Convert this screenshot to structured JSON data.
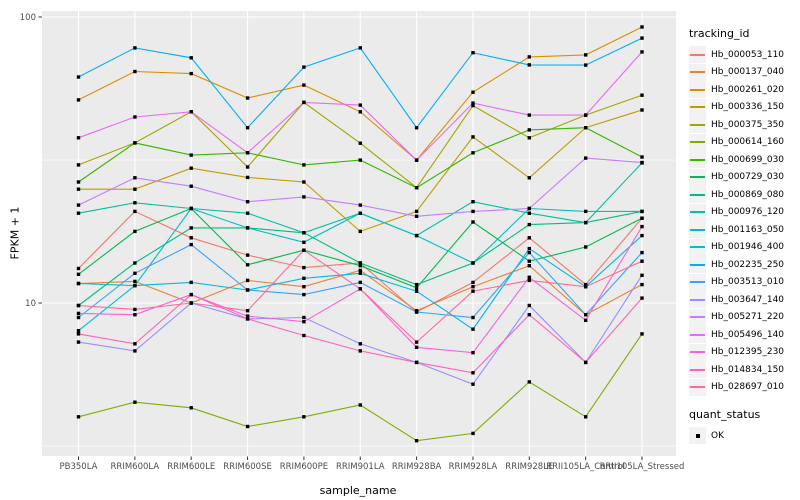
{
  "figure": {
    "background": "#FFFFFF",
    "panel_background": "#EBEBEB",
    "grid_color": "#FFFFFF",
    "tick_mark_color": "#333333",
    "axis_text_color": "#4D4D4D",
    "legend_key_background": "#F2F2F2"
  },
  "legend": {
    "color_title": "tracking_id",
    "shape_title": "quant_status",
    "shape_items": [
      "OK"
    ]
  },
  "chart_data": {
    "type": "line",
    "title": "",
    "xlabel": "sample_name",
    "ylabel": "FPKM + 1",
    "y_scale": "log10",
    "ylim": [
      2.9,
      105
    ],
    "grid": true,
    "legend_position": "right",
    "point_shape": "square",
    "point_color": "#000000",
    "y_major_ticks": [
      {
        "label": "100",
        "value": 100
      },
      {
        "label": "10",
        "value": 10
      }
    ],
    "y_minor_ticks": [
      31.6,
      3.16
    ],
    "categories": [
      "PB350LA",
      "RRIM600LA",
      "RRIM600LE",
      "RRIM600SE",
      "RRIM600PE",
      "RRIM901LA",
      "RRIM928BA",
      "RRIM928LA",
      "RRIM928LE",
      "RRII105LA_Control",
      "RRII105LA_Stressed"
    ],
    "series": [
      {
        "name": "Hb_000053_110",
        "color": "#F8766D",
        "values": [
          13.2,
          20.9,
          16.9,
          14.7,
          13.3,
          13.8,
          9.3,
          11.8,
          16.9,
          11.6,
          19.8
        ]
      },
      {
        "name": "Hb_000137_040",
        "color": "#EA8331",
        "values": [
          11.7,
          11.9,
          10.0,
          12.0,
          11.4,
          13.0,
          9.4,
          11.4,
          13.5,
          9.1,
          11.6
        ]
      },
      {
        "name": "Hb_000261_020",
        "color": "#D89000",
        "values": [
          51.3,
          64.5,
          63.4,
          52.1,
          57.8,
          46.6,
          31.6,
          54.6,
          72.5,
          73.7,
          92.3
        ]
      },
      {
        "name": "Hb_000336_150",
        "color": "#C09B00",
        "values": [
          25.0,
          25.0,
          29.6,
          27.5,
          26.5,
          17.8,
          20.9,
          38.1,
          27.4,
          41.0,
          47.3
        ]
      },
      {
        "name": "Hb_000375_350",
        "color": "#A3A500",
        "values": [
          30.4,
          36.3,
          46.6,
          29.9,
          50.3,
          36.2,
          25.3,
          49.0,
          37.8,
          45.4,
          53.3
        ]
      },
      {
        "name": "Hb_000614_160",
        "color": "#7CAE00",
        "values": [
          4.0,
          4.5,
          4.3,
          3.7,
          4.0,
          4.4,
          3.3,
          3.5,
          5.3,
          4.0,
          7.8
        ]
      },
      {
        "name": "Hb_000699_030",
        "color": "#39B600",
        "values": [
          26.5,
          36.3,
          32.9,
          33.5,
          30.4,
          31.6,
          25.3,
          33.5,
          40.3,
          41.0,
          32.4
        ]
      },
      {
        "name": "Hb_000729_030",
        "color": "#00BB4E",
        "values": [
          12.6,
          17.8,
          21.4,
          13.6,
          15.3,
          13.5,
          11.3,
          19.2,
          14.0,
          15.7,
          19.8
        ]
      },
      {
        "name": "Hb_000869_080",
        "color": "#00BF7D",
        "values": [
          9.8,
          13.8,
          18.3,
          18.3,
          17.6,
          13.8,
          11.6,
          13.8,
          18.8,
          19.1,
          20.9
        ]
      },
      {
        "name": "Hb_000976_120",
        "color": "#00C1A3",
        "values": [
          20.6,
          22.4,
          21.4,
          20.6,
          17.6,
          20.6,
          17.2,
          22.6,
          20.6,
          19.1,
          30.9
        ]
      },
      {
        "name": "Hb_001163_050",
        "color": "#00BFC4",
        "values": [
          11.7,
          11.5,
          21.4,
          18.3,
          16.3,
          20.6,
          17.2,
          13.8,
          21.4,
          20.9,
          20.9
        ]
      },
      {
        "name": "Hb_001946_400",
        "color": "#00BAE0",
        "values": [
          8.0,
          11.5,
          11.8,
          11.1,
          12.2,
          12.7,
          11.0,
          8.1,
          15.5,
          11.4,
          17.2
        ]
      },
      {
        "name": "Hb_002235_250",
        "color": "#00B0F6",
        "values": [
          61.7,
          78.0,
          72.0,
          41.0,
          66.8,
          78.0,
          41.0,
          75.0,
          68.0,
          67.9,
          84.4
        ]
      },
      {
        "name": "Hb_003513_010",
        "color": "#35A2FF",
        "values": [
          8.9,
          12.7,
          16.0,
          11.1,
          10.7,
          11.8,
          9.3,
          8.9,
          15.0,
          9.1,
          15.0
        ]
      },
      {
        "name": "Hb_003647_140",
        "color": "#9590FF",
        "values": [
          7.3,
          6.8,
          10.0,
          8.8,
          8.9,
          7.2,
          6.2,
          5.2,
          9.8,
          6.2,
          12.5
        ]
      },
      {
        "name": "Hb_005271_220",
        "color": "#C77CFF",
        "values": [
          22.0,
          27.4,
          25.6,
          22.6,
          23.5,
          22.0,
          20.1,
          20.9,
          21.4,
          32.1,
          31.0
        ]
      },
      {
        "name": "Hb_005496_140",
        "color": "#E76BF3",
        "values": [
          37.8,
          44.7,
          46.6,
          33.5,
          50.3,
          49.2,
          31.6,
          50.0,
          45.4,
          45.4,
          75.5
        ]
      },
      {
        "name": "Hb_012395_230",
        "color": "#FA62DB",
        "values": [
          9.2,
          9.1,
          10.7,
          9.0,
          8.6,
          11.2,
          7.0,
          6.7,
          12.3,
          8.7,
          18.5
        ]
      },
      {
        "name": "Hb_014834_150",
        "color": "#FF62BC",
        "values": [
          7.8,
          7.2,
          10.7,
          8.8,
          7.7,
          6.8,
          6.2,
          5.7,
          9.1,
          6.2,
          10.4
        ]
      },
      {
        "name": "Hb_028697_010",
        "color": "#FF6A98",
        "values": [
          9.8,
          9.5,
          10.0,
          9.4,
          15.3,
          11.2,
          7.3,
          11.0,
          12.0,
          11.4,
          14.0
        ]
      }
    ]
  }
}
